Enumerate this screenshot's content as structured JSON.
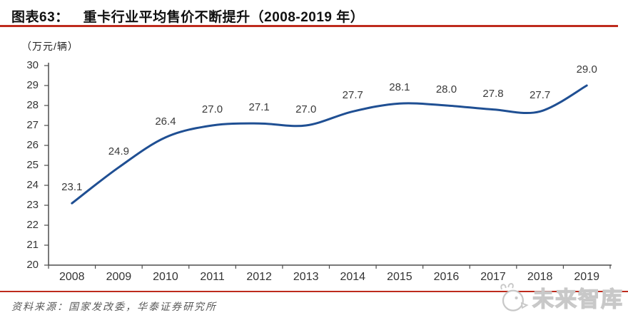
{
  "header": {
    "label": "图表63：",
    "title": "重卡行业平均售价不断提升（2008-2019 年）"
  },
  "chart_data": {
    "type": "line",
    "title": "重卡行业平均售价不断提升（2008-2019 年）",
    "unit_label": "（万元/辆）",
    "categories": [
      "2008",
      "2009",
      "2010",
      "2011",
      "2012",
      "2013",
      "2014",
      "2015",
      "2016",
      "2017",
      "2018",
      "2019"
    ],
    "values": [
      23.1,
      24.9,
      26.4,
      27.0,
      27.1,
      27.0,
      27.7,
      28.1,
      28.0,
      27.8,
      27.7,
      29.0
    ],
    "ylim": [
      20,
      30
    ],
    "ytick_step": 1,
    "grid": false,
    "smooth": true,
    "show_data_labels": true,
    "legend": "none",
    "line_color": "#1F4F93"
  },
  "footer": {
    "source": "资料来源：国家发改委，华泰证券研究所",
    "logo_text": "未来智库"
  },
  "colors": {
    "accent_red": "#BE2B1D",
    "axis_gray": "#4d4d4d"
  }
}
